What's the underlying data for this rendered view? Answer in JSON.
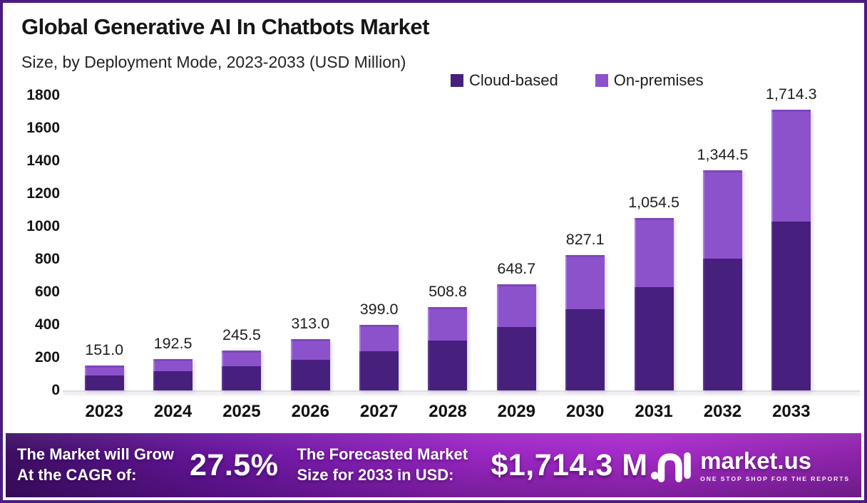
{
  "header": {
    "title": "Global Generative AI In Chatbots Market",
    "subtitle": "Size, by Deployment Mode, 2023-2033 (USD Million)"
  },
  "chart_data": {
    "type": "bar",
    "stacked": true,
    "title": "Global Generative AI In Chatbots Market Size, by Deployment Mode, 2023-2033 (USD Million)",
    "categories": [
      "2023",
      "2024",
      "2025",
      "2026",
      "2027",
      "2028",
      "2029",
      "2030",
      "2031",
      "2032",
      "2033"
    ],
    "series": [
      {
        "name": "Cloud-based",
        "color": "#46207c",
        "values": [
          90.6,
          115.5,
          147.3,
          187.8,
          239.4,
          305.3,
          389.2,
          496.3,
          632.7,
          806.7,
          1028.6
        ]
      },
      {
        "name": "On-premises",
        "color": "#8c52cc",
        "values": [
          60.4,
          77.0,
          98.2,
          125.2,
          159.6,
          203.5,
          259.5,
          330.8,
          421.8,
          537.8,
          685.7
        ]
      }
    ],
    "totals": [
      151.0,
      192.5,
      245.5,
      313.0,
      399.0,
      508.8,
      648.7,
      827.1,
      1054.5,
      1344.5,
      1714.3
    ],
    "total_labels": [
      "151.0",
      "192.5",
      "245.5",
      "313.0",
      "399.0",
      "508.8",
      "648.7",
      "827.1",
      "1,054.5",
      "1,344.5",
      "1,714.3"
    ],
    "xlabel": "",
    "ylabel": "",
    "ylim": [
      0,
      1800
    ],
    "yticks": [
      0,
      200,
      400,
      600,
      800,
      1000,
      1200,
      1400,
      1600,
      1800
    ],
    "grid": false,
    "legend_position": "top"
  },
  "footer": {
    "cagr_line1": "The Market will Grow",
    "cagr_line2": "At the CAGR of:",
    "cagr_value": "27.5%",
    "forecast_line1": "The Forecasted Market",
    "forecast_line2": "Size for 2033 in USD:",
    "forecast_value": "$1,714.3 M",
    "brand": "market.us",
    "brand_tagline": "ONE STOP SHOP FOR THE REPORTS"
  },
  "colors": {
    "border": "#4b1c80",
    "cloud_based": "#46207c",
    "on_premises": "#8c52cc",
    "banner_left": "#3d0e64",
    "banner_mid": "#9b27c4",
    "banner_right": "#8e24aa"
  }
}
